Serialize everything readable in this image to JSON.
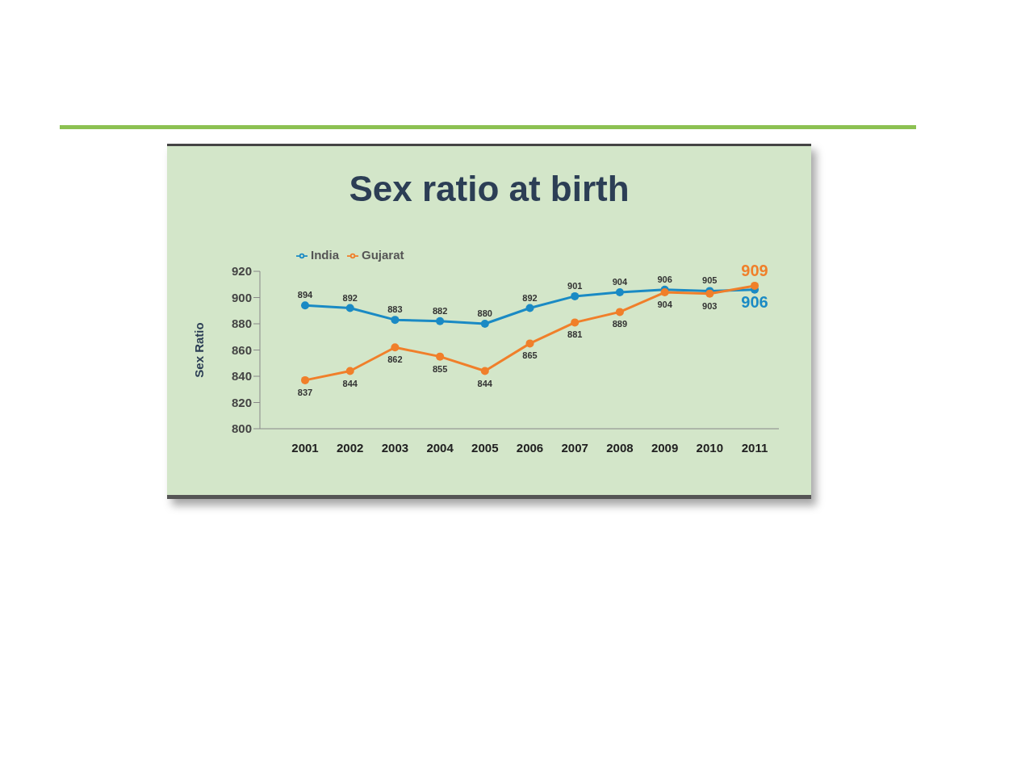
{
  "chart_data": {
    "type": "line",
    "title": "Sex ratio at birth",
    "ylabel": "Sex Ratio",
    "categories": [
      "2001",
      "2002",
      "2003",
      "2004",
      "2005",
      "2006",
      "2007",
      "2008",
      "2009",
      "2010",
      "2011"
    ],
    "series": [
      {
        "name": "India",
        "color": "#1a8ac4",
        "values": [
          894,
          892,
          883,
          882,
          880,
          892,
          901,
          904,
          906,
          905,
          906
        ]
      },
      {
        "name": "Gujarat",
        "color": "#f07f2a",
        "values": [
          837,
          844,
          862,
          855,
          844,
          865,
          881,
          889,
          904,
          903,
          909
        ]
      }
    ],
    "ylim": [
      800,
      920
    ],
    "yticks": [
      800,
      820,
      840,
      860,
      880,
      900,
      920
    ],
    "grid": false,
    "legend": "top left",
    "marker": "circle",
    "line_style": "solid",
    "data_labels": true
  }
}
